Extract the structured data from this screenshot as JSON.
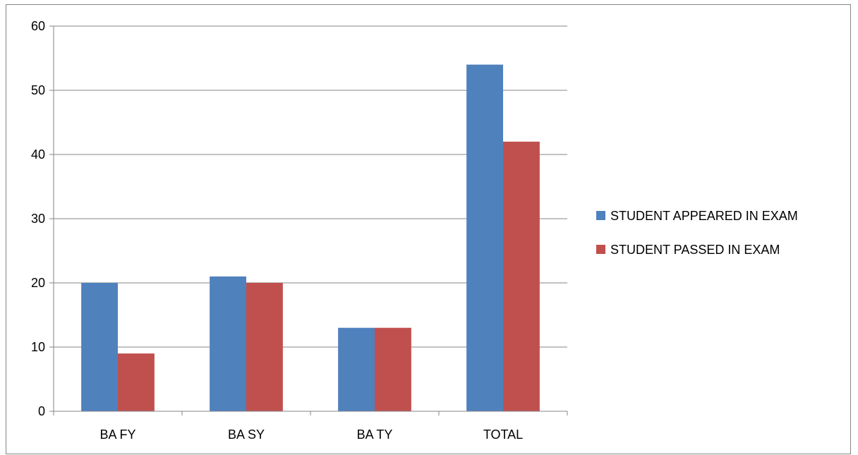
{
  "chart_data": {
    "type": "bar",
    "title": "",
    "xlabel": "",
    "ylabel": "",
    "categories": [
      "BA FY",
      "BA SY",
      "BA TY",
      "TOTAL"
    ],
    "series": [
      {
        "name": "STUDENT APPEARED IN EXAM",
        "values": [
          20,
          21,
          13,
          54
        ],
        "color": "#4f81bd"
      },
      {
        "name": "STUDENT PASSED IN EXAM",
        "values": [
          9,
          20,
          13,
          42
        ],
        "color": "#c0504d"
      }
    ],
    "ylim": [
      0,
      60
    ],
    "yticks": [
      0,
      10,
      20,
      30,
      40,
      50,
      60
    ],
    "grid": true,
    "legend": "right"
  }
}
